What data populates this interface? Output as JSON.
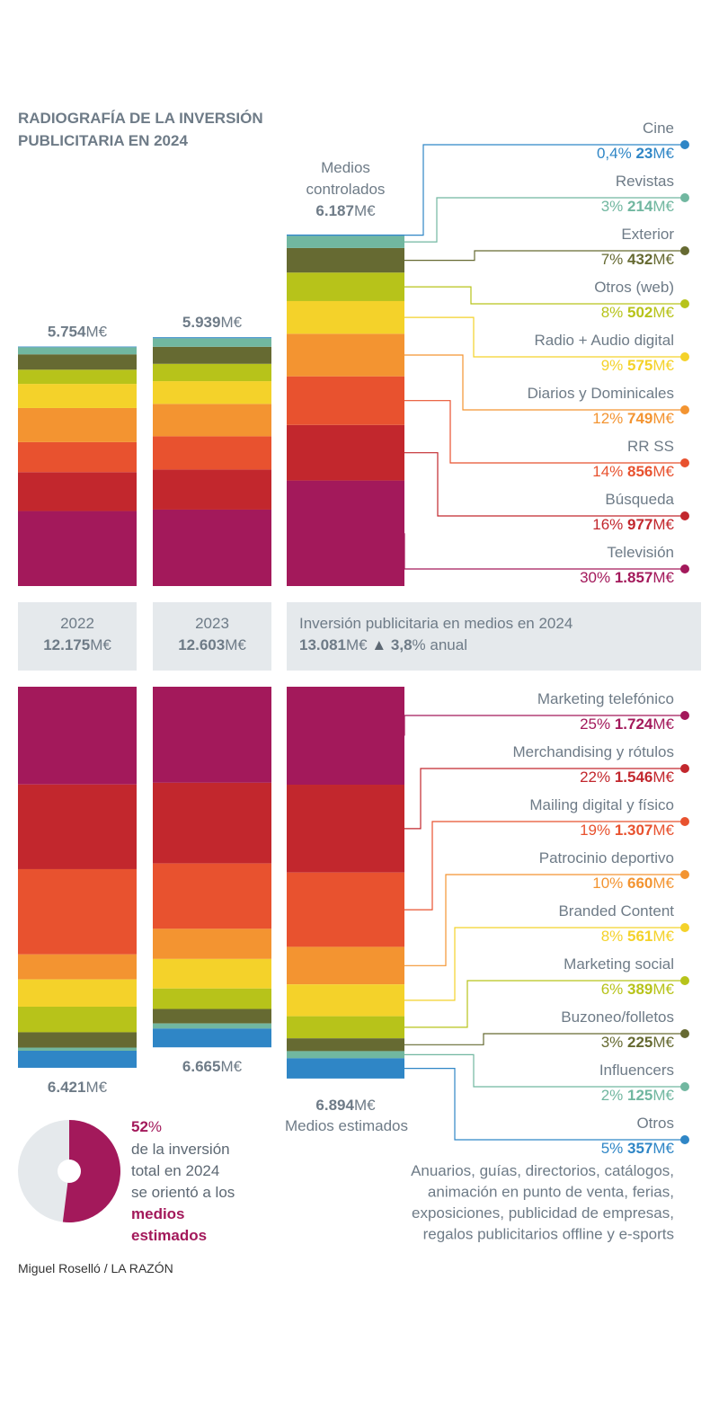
{
  "title_lines": [
    "RADIOGRAFÍA DE LA INVERSIÓN",
    "PUBLICITARIA EN 2024"
  ],
  "credit": "Miguel Roselló / LA RAZÓN",
  "colors": {
    "tv": "#a3195b",
    "busqueda": "#c2272d",
    "rrss": "#e8522f",
    "diarios": "#f39431",
    "radio": "#f4d22a",
    "otrosweb": "#b7c31a",
    "exterior": "#666a32",
    "revistas": "#71b7a0",
    "cine": "#2f86c6",
    "gray": "#6e7b87",
    "light": "#e5e9ec",
    "dark": "#5d6873"
  },
  "top_header": {
    "lines": [
      "Medios",
      "controlados"
    ],
    "total_bold": "6.187",
    "unit": "M€"
  },
  "bottom_footer": {
    "total_bold": "6.894",
    "unit": "M€",
    "label": "Medios estimados"
  },
  "middle": {
    "y2022": {
      "year": "2022",
      "bold": "12.175",
      "unit": "M€"
    },
    "y2023": {
      "year": "2023",
      "bold": "12.603",
      "unit": "M€"
    },
    "y2024": {
      "title": "Inversión publicitaria en medios en 2024",
      "bold": "13.081",
      "unit": "M€",
      "arrow": "▲",
      "growth_bold": "3,8",
      "growth_rest": "% anual"
    }
  },
  "pie": {
    "pct_bold": "52",
    "pct_sign": "%",
    "lines": [
      "de la inversión",
      "total en 2024",
      "se orientó a los"
    ],
    "emph_lines": [
      "medios",
      "estimados"
    ]
  },
  "otros_note": [
    "Anuarios, guías, directorios, catálogos,",
    "animación en punto de venta, ferias,",
    "exposiciones, publicidad de empresas,",
    "regalos publicitarios offline y e-sports"
  ],
  "chart_data": [
    {
      "type": "bar",
      "title": "Medios controlados",
      "categories": [
        "2022",
        "2023",
        "2024"
      ],
      "totals": [
        5754,
        5939,
        6187
      ],
      "total_labels": [
        "5.754",
        "5.939",
        "6.187"
      ],
      "unit": "M€",
      "series": [
        {
          "name": "Televisión",
          "color": "tv",
          "pct": "30%",
          "value_label": "1.857",
          "values": [
            1320,
            1345,
            1857
          ]
        },
        {
          "name": "Búsqueda",
          "color": "busqueda",
          "pct": "16%",
          "value_label": "977",
          "values": [
            684,
            705,
            977
          ]
        },
        {
          "name": "RR SS",
          "color": "rrss",
          "pct": "14%",
          "value_label": "856",
          "values": [
            528,
            585,
            856
          ]
        },
        {
          "name": "Diarios y Dominicales",
          "color": "diarios",
          "pct": "12%",
          "value_label": "749",
          "values": [
            600,
            570,
            749
          ]
        },
        {
          "name": "Radio + Audio digital",
          "color": "radio",
          "pct": "9%",
          "value_label": "575",
          "values": [
            425,
            400,
            575
          ]
        },
        {
          "name": "Otros (web)",
          "color": "otrosweb",
          "pct": "8%",
          "value_label": "502",
          "values": [
            250,
            305,
            502
          ]
        },
        {
          "name": "Exterior",
          "color": "exterior",
          "pct": "7%",
          "value_label": "432",
          "values": [
            270,
            300,
            432
          ]
        },
        {
          "name": "Revistas",
          "color": "revistas",
          "pct": "3%",
          "value_label": "214",
          "values": [
            125,
            150,
            214
          ]
        },
        {
          "name": "Cine",
          "color": "cine",
          "pct": "0,4%",
          "value_label": "23",
          "values": [
            12,
            18,
            23
          ]
        }
      ]
    },
    {
      "type": "bar",
      "title": "Medios estimados",
      "categories": [
        "2022",
        "2023",
        "2024"
      ],
      "totals": [
        6421,
        6665,
        6894
      ],
      "total_labels": [
        "6.421",
        "6.665",
        "6.894"
      ],
      "unit": "M€",
      "series": [
        {
          "name": "Marketing telefónico",
          "color": "tv",
          "pct": "25%",
          "value_label": "1.724",
          "values": [
            1720,
            1690,
            1724
          ]
        },
        {
          "name": "Merchandising y rótulos",
          "color": "busqueda",
          "pct": "22%",
          "value_label": "1.546",
          "values": [
            1490,
            1420,
            1546
          ]
        },
        {
          "name": "Mailing digital y físico",
          "color": "rrss",
          "pct": "19%",
          "value_label": "1.307",
          "values": [
            1500,
            1150,
            1307
          ]
        },
        {
          "name": "Patrocinio deportivo",
          "color": "diarios",
          "pct": "10%",
          "value_label": "660",
          "values": [
            440,
            530,
            660
          ]
        },
        {
          "name": "Branded Content",
          "color": "radio",
          "pct": "8%",
          "value_label": "561",
          "values": [
            480,
            520,
            561
          ]
        },
        {
          "name": "Marketing social",
          "color": "otrosweb",
          "pct": "6%",
          "value_label": "389",
          "values": [
            450,
            360,
            389
          ]
        },
        {
          "name": "Buzoneo/folletos",
          "color": "exterior",
          "pct": "3%",
          "value_label": "225",
          "values": [
            270,
            255,
            225
          ]
        },
        {
          "name": "Influencers",
          "color": "revistas",
          "pct": "2%",
          "value_label": "125",
          "values": [
            55,
            90,
            125
          ]
        },
        {
          "name": "Otros",
          "color": "cine",
          "pct": "5%",
          "value_label": "357",
          "values": [
            300,
            330,
            357
          ]
        }
      ]
    },
    {
      "type": "pie",
      "labels": [
        "medios estimados",
        "medios controlados"
      ],
      "values": [
        52,
        48
      ],
      "colors": [
        "tv",
        "light"
      ]
    }
  ]
}
